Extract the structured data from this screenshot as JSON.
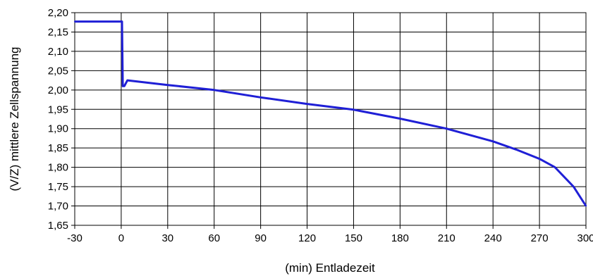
{
  "chart_data": {
    "type": "line",
    "xlabel": "(min) Entladezeit",
    "ylabel": "(V/Z) mittlere Zellspannung",
    "xlim": [
      -30,
      300
    ],
    "ylim": [
      1.65,
      2.2
    ],
    "x_ticks": [
      "-30",
      "0",
      "30",
      "60",
      "90",
      "120",
      "150",
      "180",
      "210",
      "240",
      "270",
      "300"
    ],
    "y_ticks": [
      "2,20",
      "2,15",
      "2,10",
      "2,05",
      "2,00",
      "1,95",
      "1,90",
      "1,85",
      "1,80",
      "1,75",
      "1,70",
      "1,65"
    ],
    "x_tick_values": [
      -30,
      0,
      30,
      60,
      90,
      120,
      150,
      180,
      210,
      240,
      270,
      300
    ],
    "y_tick_values": [
      2.2,
      2.15,
      2.1,
      2.05,
      2.0,
      1.95,
      1.9,
      1.85,
      1.8,
      1.75,
      1.7,
      1.65
    ],
    "grid": true,
    "legend": "none",
    "series": [
      {
        "color": "#1f1fd6",
        "points": [
          [
            -30,
            2.177
          ],
          [
            0,
            2.177
          ],
          [
            0.5,
            2.177
          ],
          [
            1,
            2.01
          ],
          [
            2,
            2.01
          ],
          [
            4,
            2.025
          ],
          [
            30,
            2.013
          ],
          [
            60,
            2.0
          ],
          [
            90,
            1.981
          ],
          [
            120,
            1.964
          ],
          [
            150,
            1.949
          ],
          [
            180,
            1.926
          ],
          [
            210,
            1.9
          ],
          [
            240,
            1.867
          ],
          [
            255,
            1.846
          ],
          [
            270,
            1.822
          ],
          [
            280,
            1.8
          ],
          [
            292,
            1.75
          ],
          [
            300,
            1.7
          ]
        ]
      }
    ]
  }
}
